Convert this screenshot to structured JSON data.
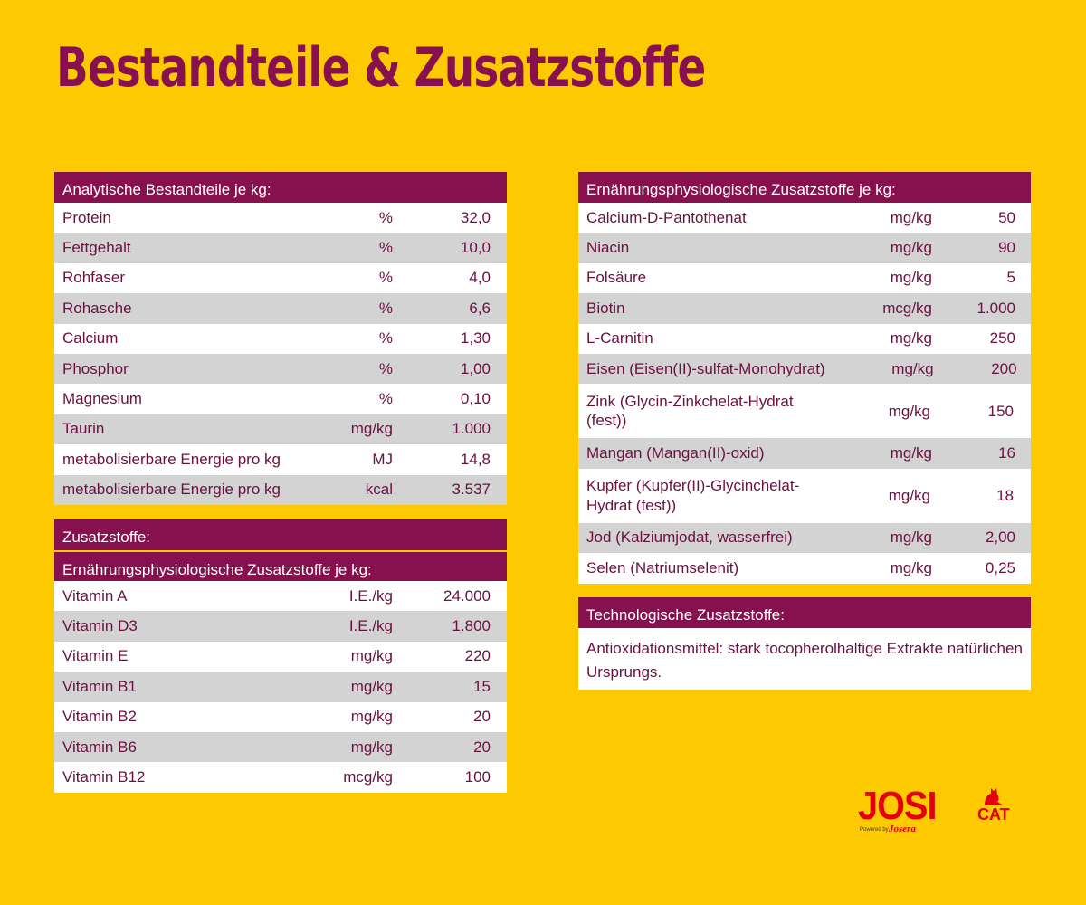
{
  "title": "Bestandteile & Zusatzstoffe",
  "analytic": {
    "header": "Analytische Bestandteile je kg:",
    "rows": [
      {
        "name": "Protein",
        "unit": "%",
        "value": "32,0"
      },
      {
        "name": "Fettgehalt",
        "unit": "%",
        "value": "10,0"
      },
      {
        "name": "Rohfaser",
        "unit": "%",
        "value": "4,0"
      },
      {
        "name": "Rohasche",
        "unit": "%",
        "value": "6,6"
      },
      {
        "name": "Calcium",
        "unit": "%",
        "value": "1,30"
      },
      {
        "name": "Phosphor",
        "unit": "%",
        "value": "1,00"
      },
      {
        "name": "Magnesium",
        "unit": "%",
        "value": "0,10"
      },
      {
        "name": "Taurin",
        "unit": "mg/kg",
        "value": "1.000"
      },
      {
        "name": "metabolisierbare Energie pro kg",
        "unit": "MJ",
        "value": "14,8"
      },
      {
        "name": "metabolisierbare Energie pro kg",
        "unit": "kcal",
        "value": "3.537"
      }
    ]
  },
  "additives": {
    "header": "Zusatzstoffe:",
    "subheader": "Ernährungsphysiologische Zusatzstoffe je kg:",
    "rows": [
      {
        "name": "Vitamin A",
        "unit": "I.E./kg",
        "value": "24.000"
      },
      {
        "name": "Vitamin D3",
        "unit": "I.E./kg",
        "value": "1.800"
      },
      {
        "name": "Vitamin E",
        "unit": "mg/kg",
        "value": "220"
      },
      {
        "name": "Vitamin B1",
        "unit": "mg/kg",
        "value": "15"
      },
      {
        "name": "Vitamin B2",
        "unit": "mg/kg",
        "value": "20"
      },
      {
        "name": "Vitamin B6",
        "unit": "mg/kg",
        "value": "20"
      },
      {
        "name": "Vitamin B12",
        "unit": "mcg/kg",
        "value": "100"
      }
    ]
  },
  "nutritional": {
    "header": "Ernährungsphysiologische Zusatzstoffe je kg:",
    "rows": [
      {
        "name": "Calcium-D-Pantothenat",
        "unit": "mg/kg",
        "value": "50"
      },
      {
        "name": "Niacin",
        "unit": "mg/kg",
        "value": "90"
      },
      {
        "name": "Folsäure",
        "unit": "mg/kg",
        "value": "5"
      },
      {
        "name": "Biotin",
        "unit": "mcg/kg",
        "value": "1.000"
      },
      {
        "name": "L-Carnitin",
        "unit": "mg/kg",
        "value": "250"
      },
      {
        "name": "Eisen (Eisen(II)-sulfat-Monohydrat)",
        "unit": "mg/kg",
        "value": "200"
      },
      {
        "name": "Zink (Glycin-Zinkchelat-Hydrat (fest))",
        "unit": "mg/kg",
        "value": "150"
      },
      {
        "name": "Mangan (Mangan(II)-oxid)",
        "unit": "mg/kg",
        "value": "16"
      },
      {
        "name": "Kupfer (Kupfer(II)-Glycinchelat-Hydrat (fest))",
        "unit": "mg/kg",
        "value": "18"
      },
      {
        "name": "Jod (Kalziumjodat, wasserfrei)",
        "unit": "mg/kg",
        "value": "2,00"
      },
      {
        "name": "Selen (Natriumselenit)",
        "unit": "mg/kg",
        "value": "0,25"
      }
    ]
  },
  "technological": {
    "header": "Technologische Zusatzstoffe:",
    "text": "Antioxidationsmittel: stark tocopherolhaltige Extrakte natürlichen Ursprungs."
  },
  "logo": {
    "brand": "JOSI",
    "sub": "CAT",
    "powered": "Powered by",
    "maker": "Josera"
  },
  "colors": {
    "background": "#FDC900",
    "header": "#86114E",
    "text": "#6B1141",
    "stripe": "#D3D3D3",
    "logo": "#E3000F"
  }
}
